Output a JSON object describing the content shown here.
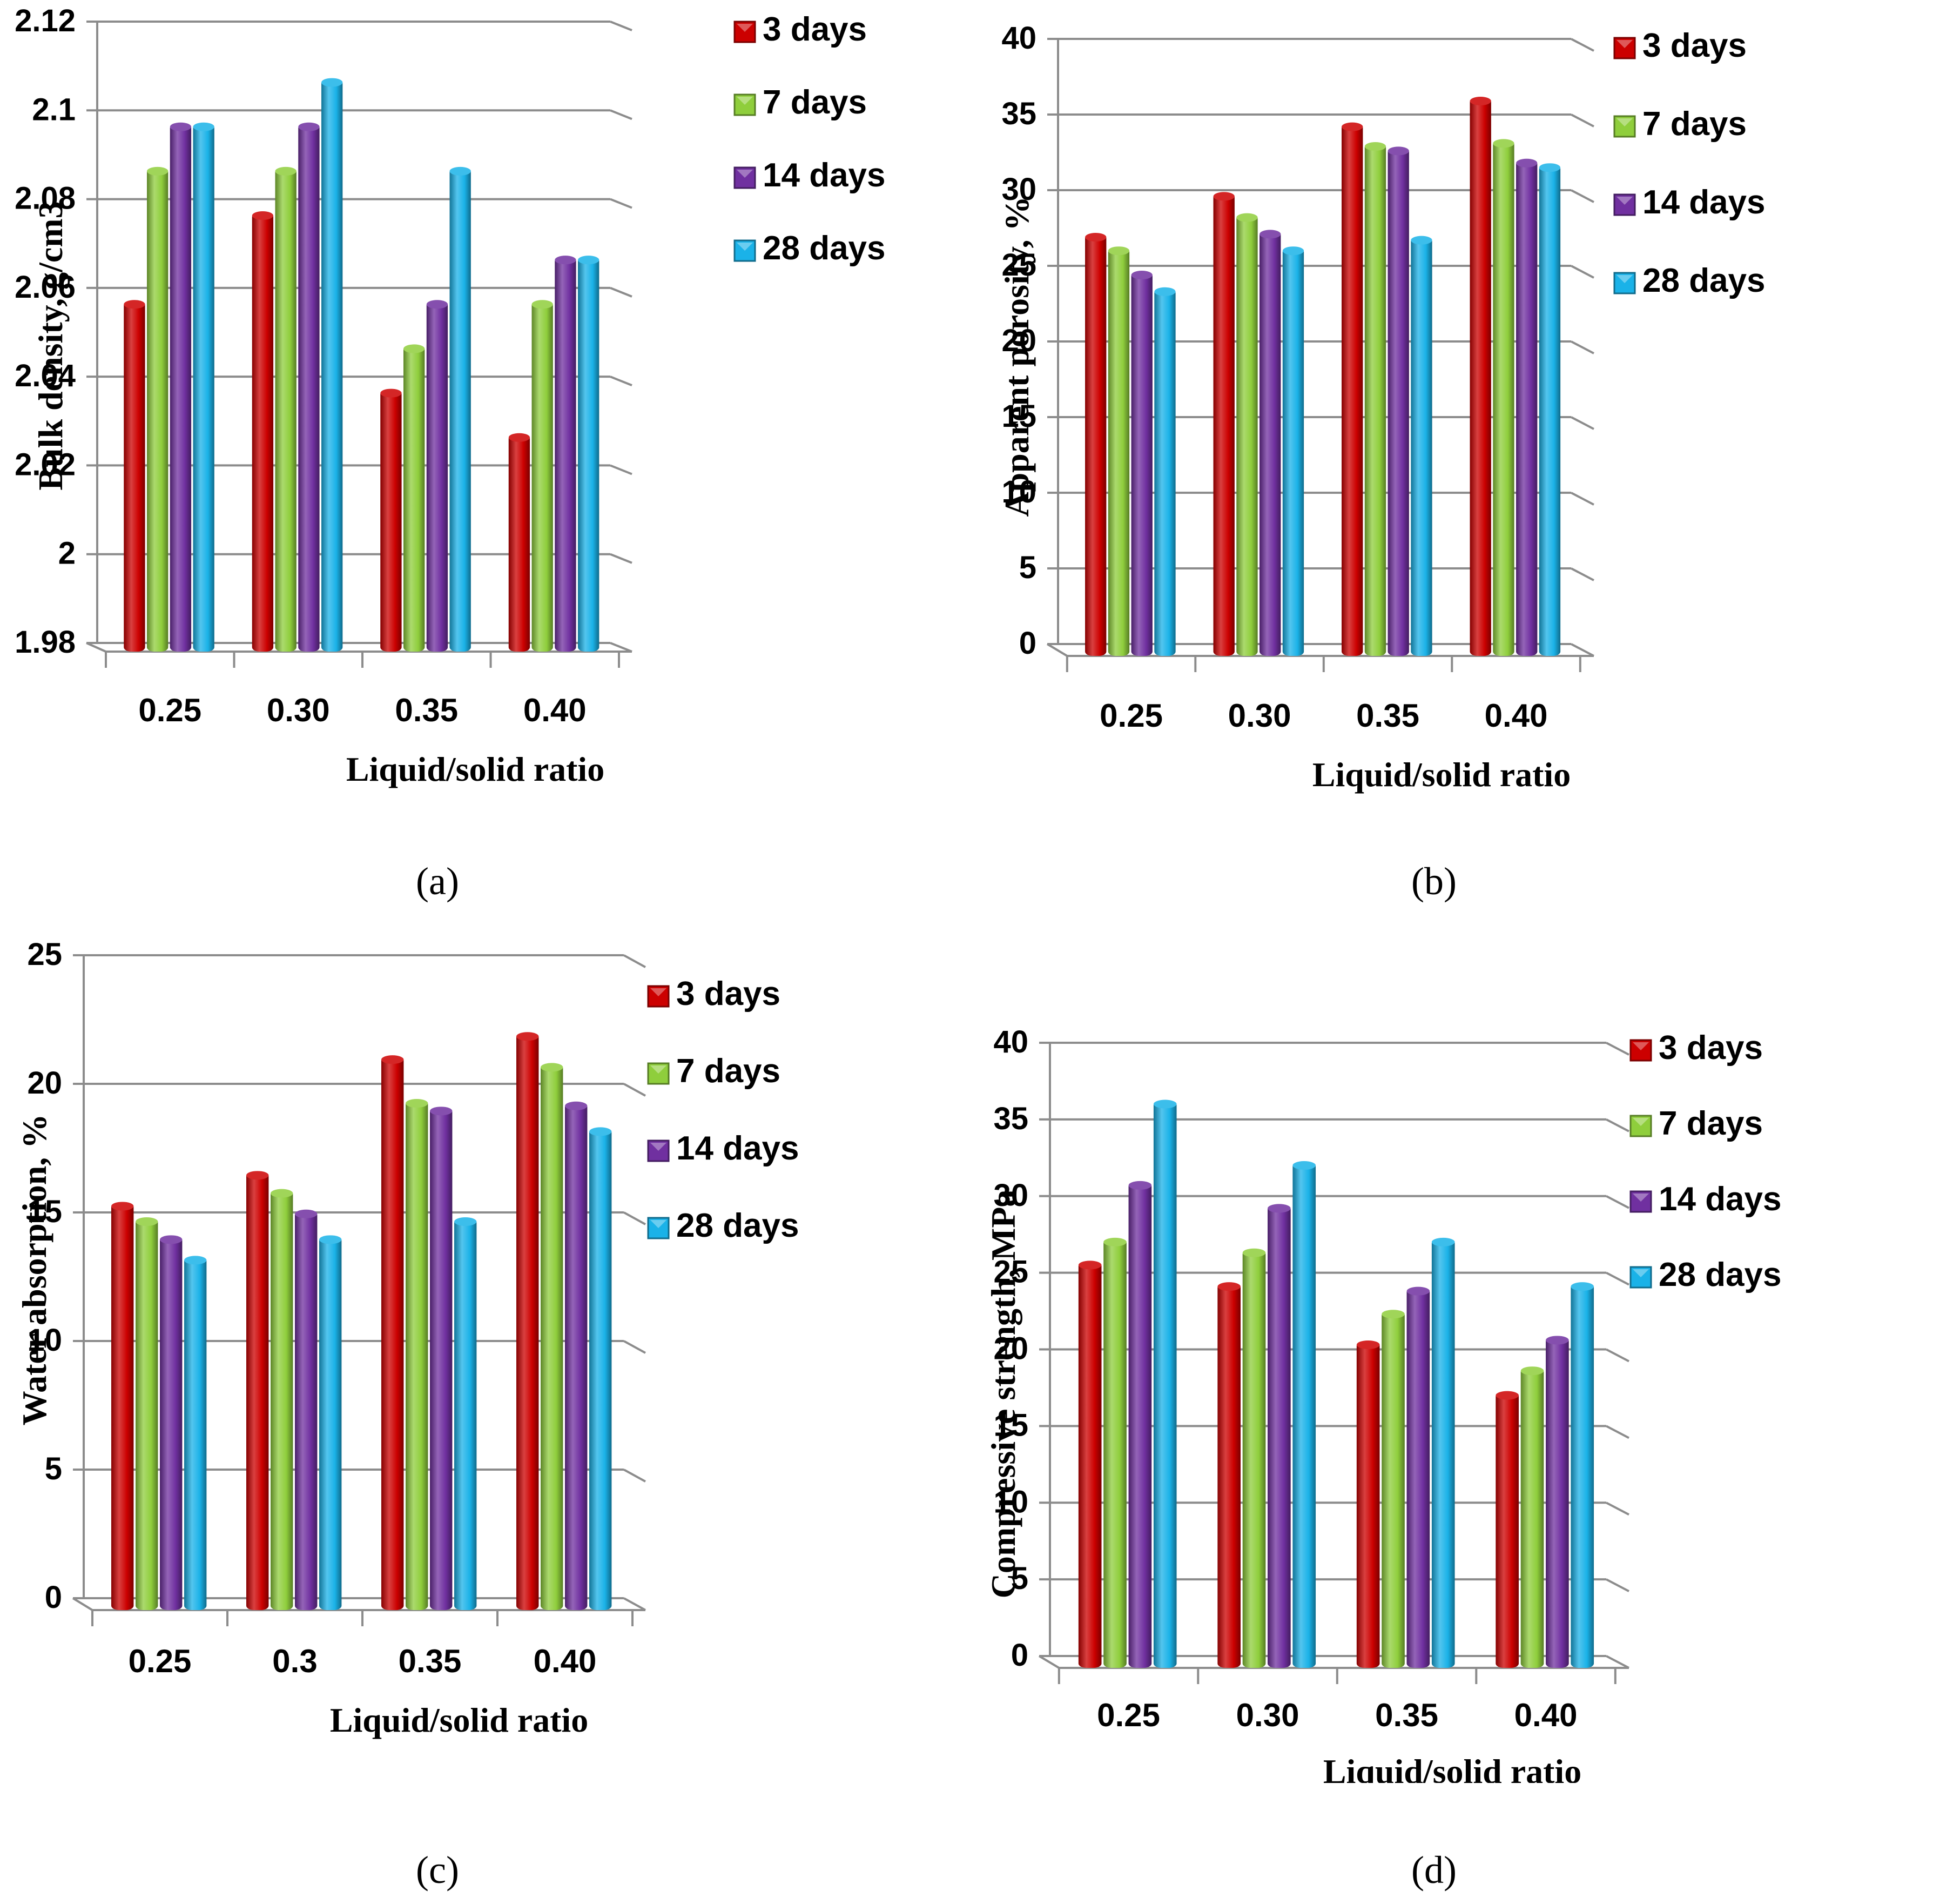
{
  "figure": {
    "series_colors": {
      "3 days": "#cc0000",
      "7 days": "#8fce3c",
      "14 days": "#7030a0",
      "28 days": "#1ab2e8"
    }
  },
  "chart_data": [
    {
      "panel": "(a)",
      "type": "bar",
      "categories": [
        "0.25",
        "0.30",
        "0.35",
        "0.40"
      ],
      "series": [
        {
          "name": "3 days",
          "values": [
            2.058,
            2.078,
            2.038,
            2.028
          ]
        },
        {
          "name": "7 days",
          "values": [
            2.088,
            2.088,
            2.048,
            2.058
          ]
        },
        {
          "name": "14 days",
          "values": [
            2.098,
            2.098,
            2.058,
            2.068
          ]
        },
        {
          "name": "28 days",
          "values": [
            2.098,
            2.108,
            2.088,
            2.068
          ]
        }
      ],
      "ylabel": "Bulk density, g/cm3",
      "xlabel": "Liquid/solid ratio",
      "ylim": [
        1.98,
        2.12
      ],
      "yticks": [
        "1.98",
        "2",
        "2.02",
        "2.04",
        "2.06",
        "2.08",
        "2.1",
        "2.12"
      ],
      "grid": true,
      "legend": "right"
    },
    {
      "panel": "(b)",
      "type": "bar",
      "categories": [
        "0.25",
        "0.30",
        "0.35",
        "0.40"
      ],
      "series": [
        {
          "name": "3 days",
          "values": [
            27.5,
            30.2,
            34.8,
            36.5
          ]
        },
        {
          "name": "7 days",
          "values": [
            26.6,
            28.8,
            33.5,
            33.7
          ]
        },
        {
          "name": "14 days",
          "values": [
            25.0,
            27.7,
            33.2,
            32.4
          ]
        },
        {
          "name": "28 days",
          "values": [
            23.9,
            26.6,
            27.3,
            32.1
          ]
        }
      ],
      "ylabel": "Apparent porosity, %",
      "xlabel": "Liquid/solid ratio",
      "ylim": [
        0,
        40
      ],
      "yticks": [
        "0",
        "5",
        "10",
        "15",
        "20",
        "25",
        "30",
        "35",
        "40"
      ],
      "grid": true,
      "legend": "right"
    },
    {
      "panel": "(c)",
      "type": "bar",
      "categories": [
        "0.25",
        "0.3",
        "0.35",
        "0.40"
      ],
      "series": [
        {
          "name": "3 days",
          "values": [
            15.6,
            16.8,
            21.3,
            22.2
          ]
        },
        {
          "name": "7 days",
          "values": [
            15.0,
            16.1,
            19.6,
            21.0
          ]
        },
        {
          "name": "14 days",
          "values": [
            14.3,
            15.3,
            19.3,
            19.5
          ]
        },
        {
          "name": "28 days",
          "values": [
            13.5,
            14.3,
            15.0,
            18.5
          ]
        }
      ],
      "ylabel": "Water absorption,  %",
      "xlabel": "Liquid/solid ratio",
      "ylim": [
        0,
        25
      ],
      "yticks": [
        "0",
        "5",
        "10",
        "15",
        "20",
        "25"
      ],
      "grid": true,
      "legend": "right"
    },
    {
      "panel": "(d)",
      "type": "bar",
      "categories": [
        "0.25",
        "0.30",
        "0.35",
        "0.40"
      ],
      "series": [
        {
          "name": "3 days",
          "values": [
            26.1,
            24.7,
            20.9,
            17.6
          ]
        },
        {
          "name": "7 days",
          "values": [
            27.6,
            26.9,
            22.9,
            19.2
          ]
        },
        {
          "name": "14 days",
          "values": [
            31.3,
            29.8,
            24.4,
            21.2
          ]
        },
        {
          "name": "28 days",
          "values": [
            36.6,
            32.6,
            27.6,
            24.7
          ]
        }
      ],
      "ylabel": "Compressive strength, MPa",
      "xlabel": "Liquid/solid ratio",
      "ylim": [
        0,
        40
      ],
      "yticks": [
        "0",
        "5",
        "10",
        "15",
        "20",
        "25",
        "30",
        "35",
        "40"
      ],
      "grid": true,
      "legend": "right"
    }
  ]
}
